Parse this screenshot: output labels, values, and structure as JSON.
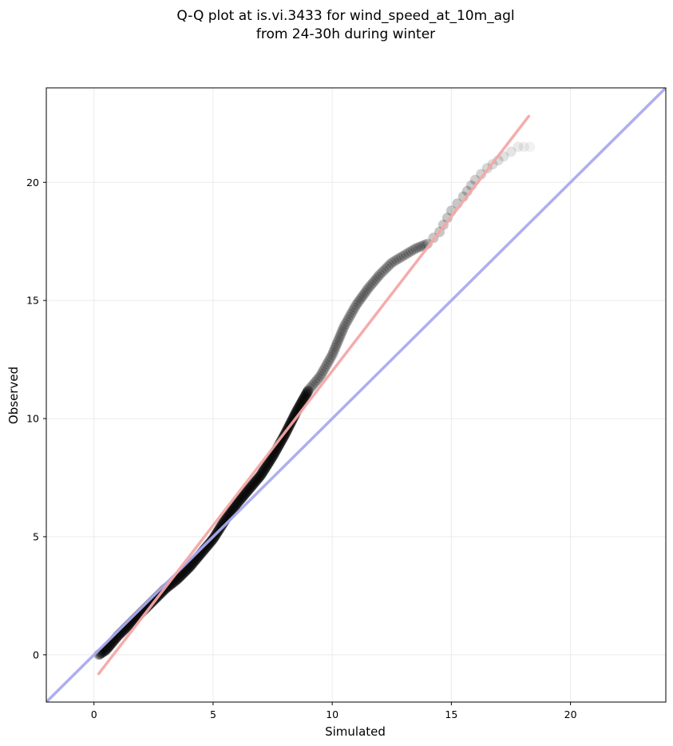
{
  "chart_data": {
    "type": "scatter",
    "title_lines": [
      "Q-Q plot at is.vi.3433 for wind_speed_at_10m_agl",
      "from 24-30h during winter"
    ],
    "xlabel": "Simulated",
    "ylabel": "Observed",
    "xlim": [
      -2,
      24
    ],
    "ylim": [
      -2,
      24
    ],
    "xticks": [
      0,
      5,
      10,
      15,
      20
    ],
    "yticks": [
      0,
      5,
      10,
      15,
      20
    ],
    "grid": true,
    "colors": {
      "points": "#000000",
      "identity_line": "#aaaaf0",
      "fit_line": "#f4a8a8",
      "grid": "#ebebeb"
    },
    "quantile_anchors": {
      "x": [
        0.2,
        0.5,
        1.0,
        1.5,
        2.0,
        2.5,
        3.0,
        3.5,
        4.0,
        4.5,
        5.0,
        5.5,
        6.0,
        6.5,
        7.0,
        7.5,
        8.0,
        8.5,
        9.0,
        9.5,
        10.0,
        10.5,
        11.0,
        11.5,
        12.0,
        12.5,
        13.0,
        13.5,
        14.0,
        14.5,
        15.0,
        15.5,
        16.0,
        16.5,
        17.2,
        17.8,
        18.3
      ],
      "y": [
        0.0,
        0.2,
        0.8,
        1.3,
        1.8,
        2.3,
        2.8,
        3.2,
        3.7,
        4.3,
        4.9,
        5.7,
        6.4,
        7.0,
        7.6,
        8.4,
        9.3,
        10.3,
        11.2,
        11.8,
        12.7,
        13.9,
        14.8,
        15.5,
        16.1,
        16.6,
        16.9,
        17.2,
        17.4,
        17.9,
        18.8,
        19.4,
        20.1,
        20.6,
        21.1,
        21.5,
        21.5
      ]
    },
    "series": [
      {
        "kind": "identity",
        "x": [
          -2,
          24
        ],
        "y": [
          -2,
          24
        ]
      },
      {
        "kind": "fit",
        "x": [
          0.2,
          18.25
        ],
        "y": [
          -0.8,
          22.8
        ]
      }
    ]
  }
}
